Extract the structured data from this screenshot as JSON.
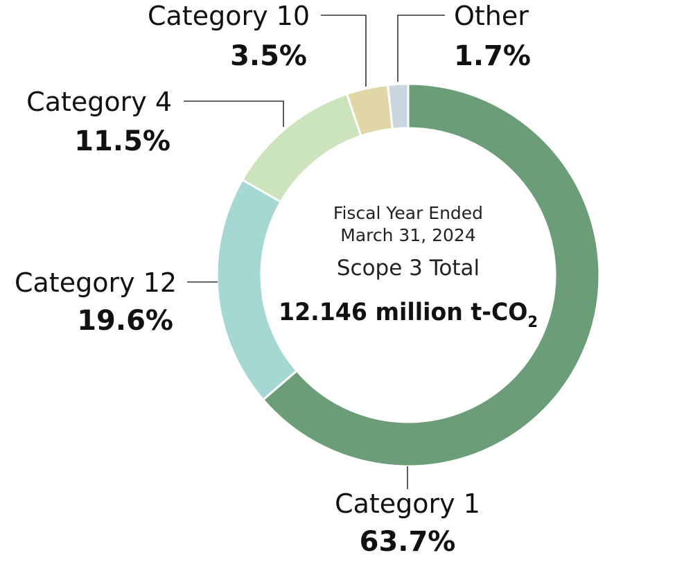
{
  "chart_data": {
    "type": "pie",
    "donut": true,
    "center_text": {
      "line1": "Fiscal Year Ended",
      "line2": "March 31, 2024",
      "line3": "Scope 3 Total",
      "total_main": "12.146 million t-CO",
      "total_sub": "2"
    },
    "slices": [
      {
        "label": "Category 1",
        "value": 63.7,
        "value_text": "63.7%",
        "color": "#6b9e78"
      },
      {
        "label": "Category 12",
        "value": 19.6,
        "value_text": "19.6%",
        "color": "#a5d7d3"
      },
      {
        "label": "Category 4",
        "value": 11.5,
        "value_text": "11.5%",
        "color": "#cbe4bb"
      },
      {
        "label": "Category 10",
        "value": 3.5,
        "value_text": "3.5%",
        "color": "#e1d6a5"
      },
      {
        "label": "Other",
        "value": 1.7,
        "value_text": "1.7%",
        "color": "#cbd7df"
      }
    ]
  }
}
